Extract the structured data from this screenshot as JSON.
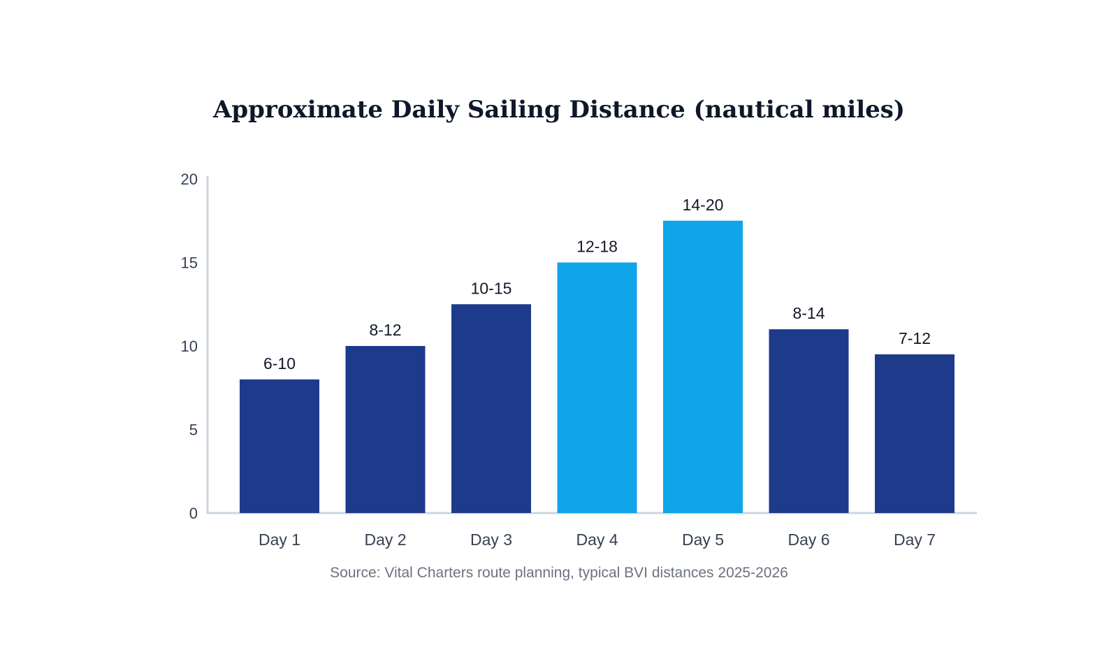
{
  "chart_data": {
    "type": "bar",
    "title": "Approximate Daily Sailing Distance (nautical miles)",
    "xlabel": "",
    "ylabel": "",
    "ylim": [
      0,
      20
    ],
    "yticks": [
      0,
      5,
      10,
      15,
      20
    ],
    "categories": [
      "Day 1",
      "Day 2",
      "Day 3",
      "Day 4",
      "Day 5",
      "Day 6",
      "Day 7"
    ],
    "values": [
      8,
      10,
      12.5,
      15,
      17.5,
      11,
      9.5
    ],
    "data_labels": [
      "6-10",
      "8-12",
      "10-15",
      "12-18",
      "14-20",
      "8-14",
      "7-12"
    ],
    "colors": [
      "#1e3a8a",
      "#1e3a8a",
      "#1e3a8a",
      "#0ea5e9",
      "#0ea5e9",
      "#1e3a8a",
      "#1e3a8a"
    ],
    "grid": false,
    "source": "Source: Vital Charters route planning, typical BVI distances 2025-2026"
  }
}
